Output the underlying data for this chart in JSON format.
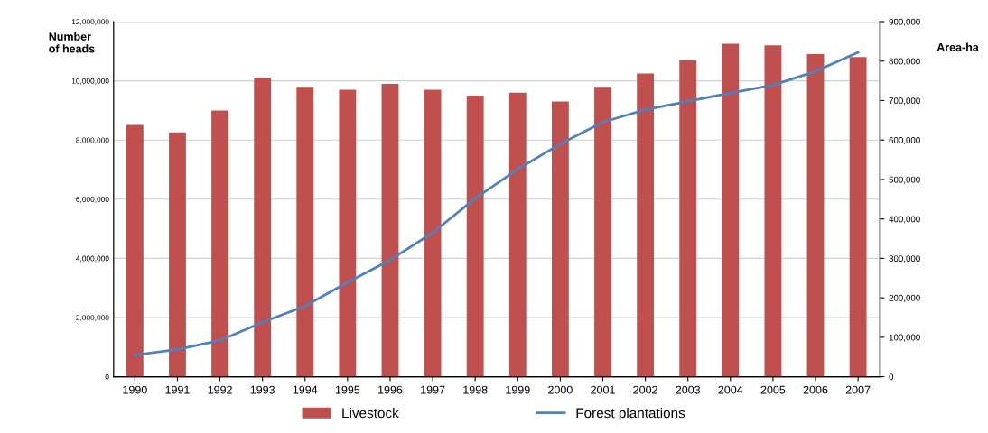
{
  "chart_data": {
    "type": "bar",
    "categories": [
      "1990",
      "1991",
      "1992",
      "1993",
      "1994",
      "1995",
      "1996",
      "1997",
      "1998",
      "1999",
      "2000",
      "2001",
      "2002",
      "2003",
      "2004",
      "2005",
      "2006",
      "2007"
    ],
    "series": [
      {
        "name": "Livestock",
        "color": "#c0504d",
        "values": [
          8510000,
          8260000,
          9000000,
          10100000,
          9800000,
          9700000,
          9900000,
          9700000,
          9500000,
          9600000,
          9300000,
          9800000,
          10250000,
          10700000,
          11250000,
          11200000,
          10900000,
          10800000
        ]
      },
      {
        "name": "Forest plantations",
        "type": "line",
        "axis": "y2",
        "color": "#4f81bd",
        "values": [
          55000,
          69000,
          92000,
          138000,
          179000,
          239000,
          296000,
          365000,
          452000,
          526000,
          590000,
          645000,
          677000,
          698000,
          719000,
          739000,
          774000,
          822000
        ]
      }
    ],
    "ylabel": "Number\nof heads",
    "y2label": "Area-ha",
    "ylim": [
      0,
      12000000
    ],
    "yticks": [
      {
        "value": 0,
        "label": "0"
      },
      {
        "value": 2000000,
        "label": "2,000,000"
      },
      {
        "value": 4000000,
        "label": "4,000,000"
      },
      {
        "value": 6000000,
        "label": "6,000,000"
      },
      {
        "value": 8000000,
        "label": "8,000,000"
      },
      {
        "value": 10000000,
        "label": "10,000,000"
      },
      {
        "value": 12000000,
        "label": "12,000,000"
      }
    ],
    "y2lim": [
      0,
      900000
    ],
    "y2ticks": [
      {
        "value": 0,
        "label": "0"
      },
      {
        "value": 100000,
        "label": "100,000"
      },
      {
        "value": 200000,
        "label": "200,000"
      },
      {
        "value": 300000,
        "label": "300,000"
      },
      {
        "value": 400000,
        "label": "400,000"
      },
      {
        "value": 500000,
        "label": "500,000"
      },
      {
        "value": 600000,
        "label": "600,000"
      },
      {
        "value": 700000,
        "label": "700,000"
      },
      {
        "value": 800000,
        "label": "800,000"
      },
      {
        "value": 900000,
        "label": "900,000"
      }
    ],
    "grid": "y",
    "legend": "bottom",
    "marker": "none",
    "line_style": "solid"
  }
}
